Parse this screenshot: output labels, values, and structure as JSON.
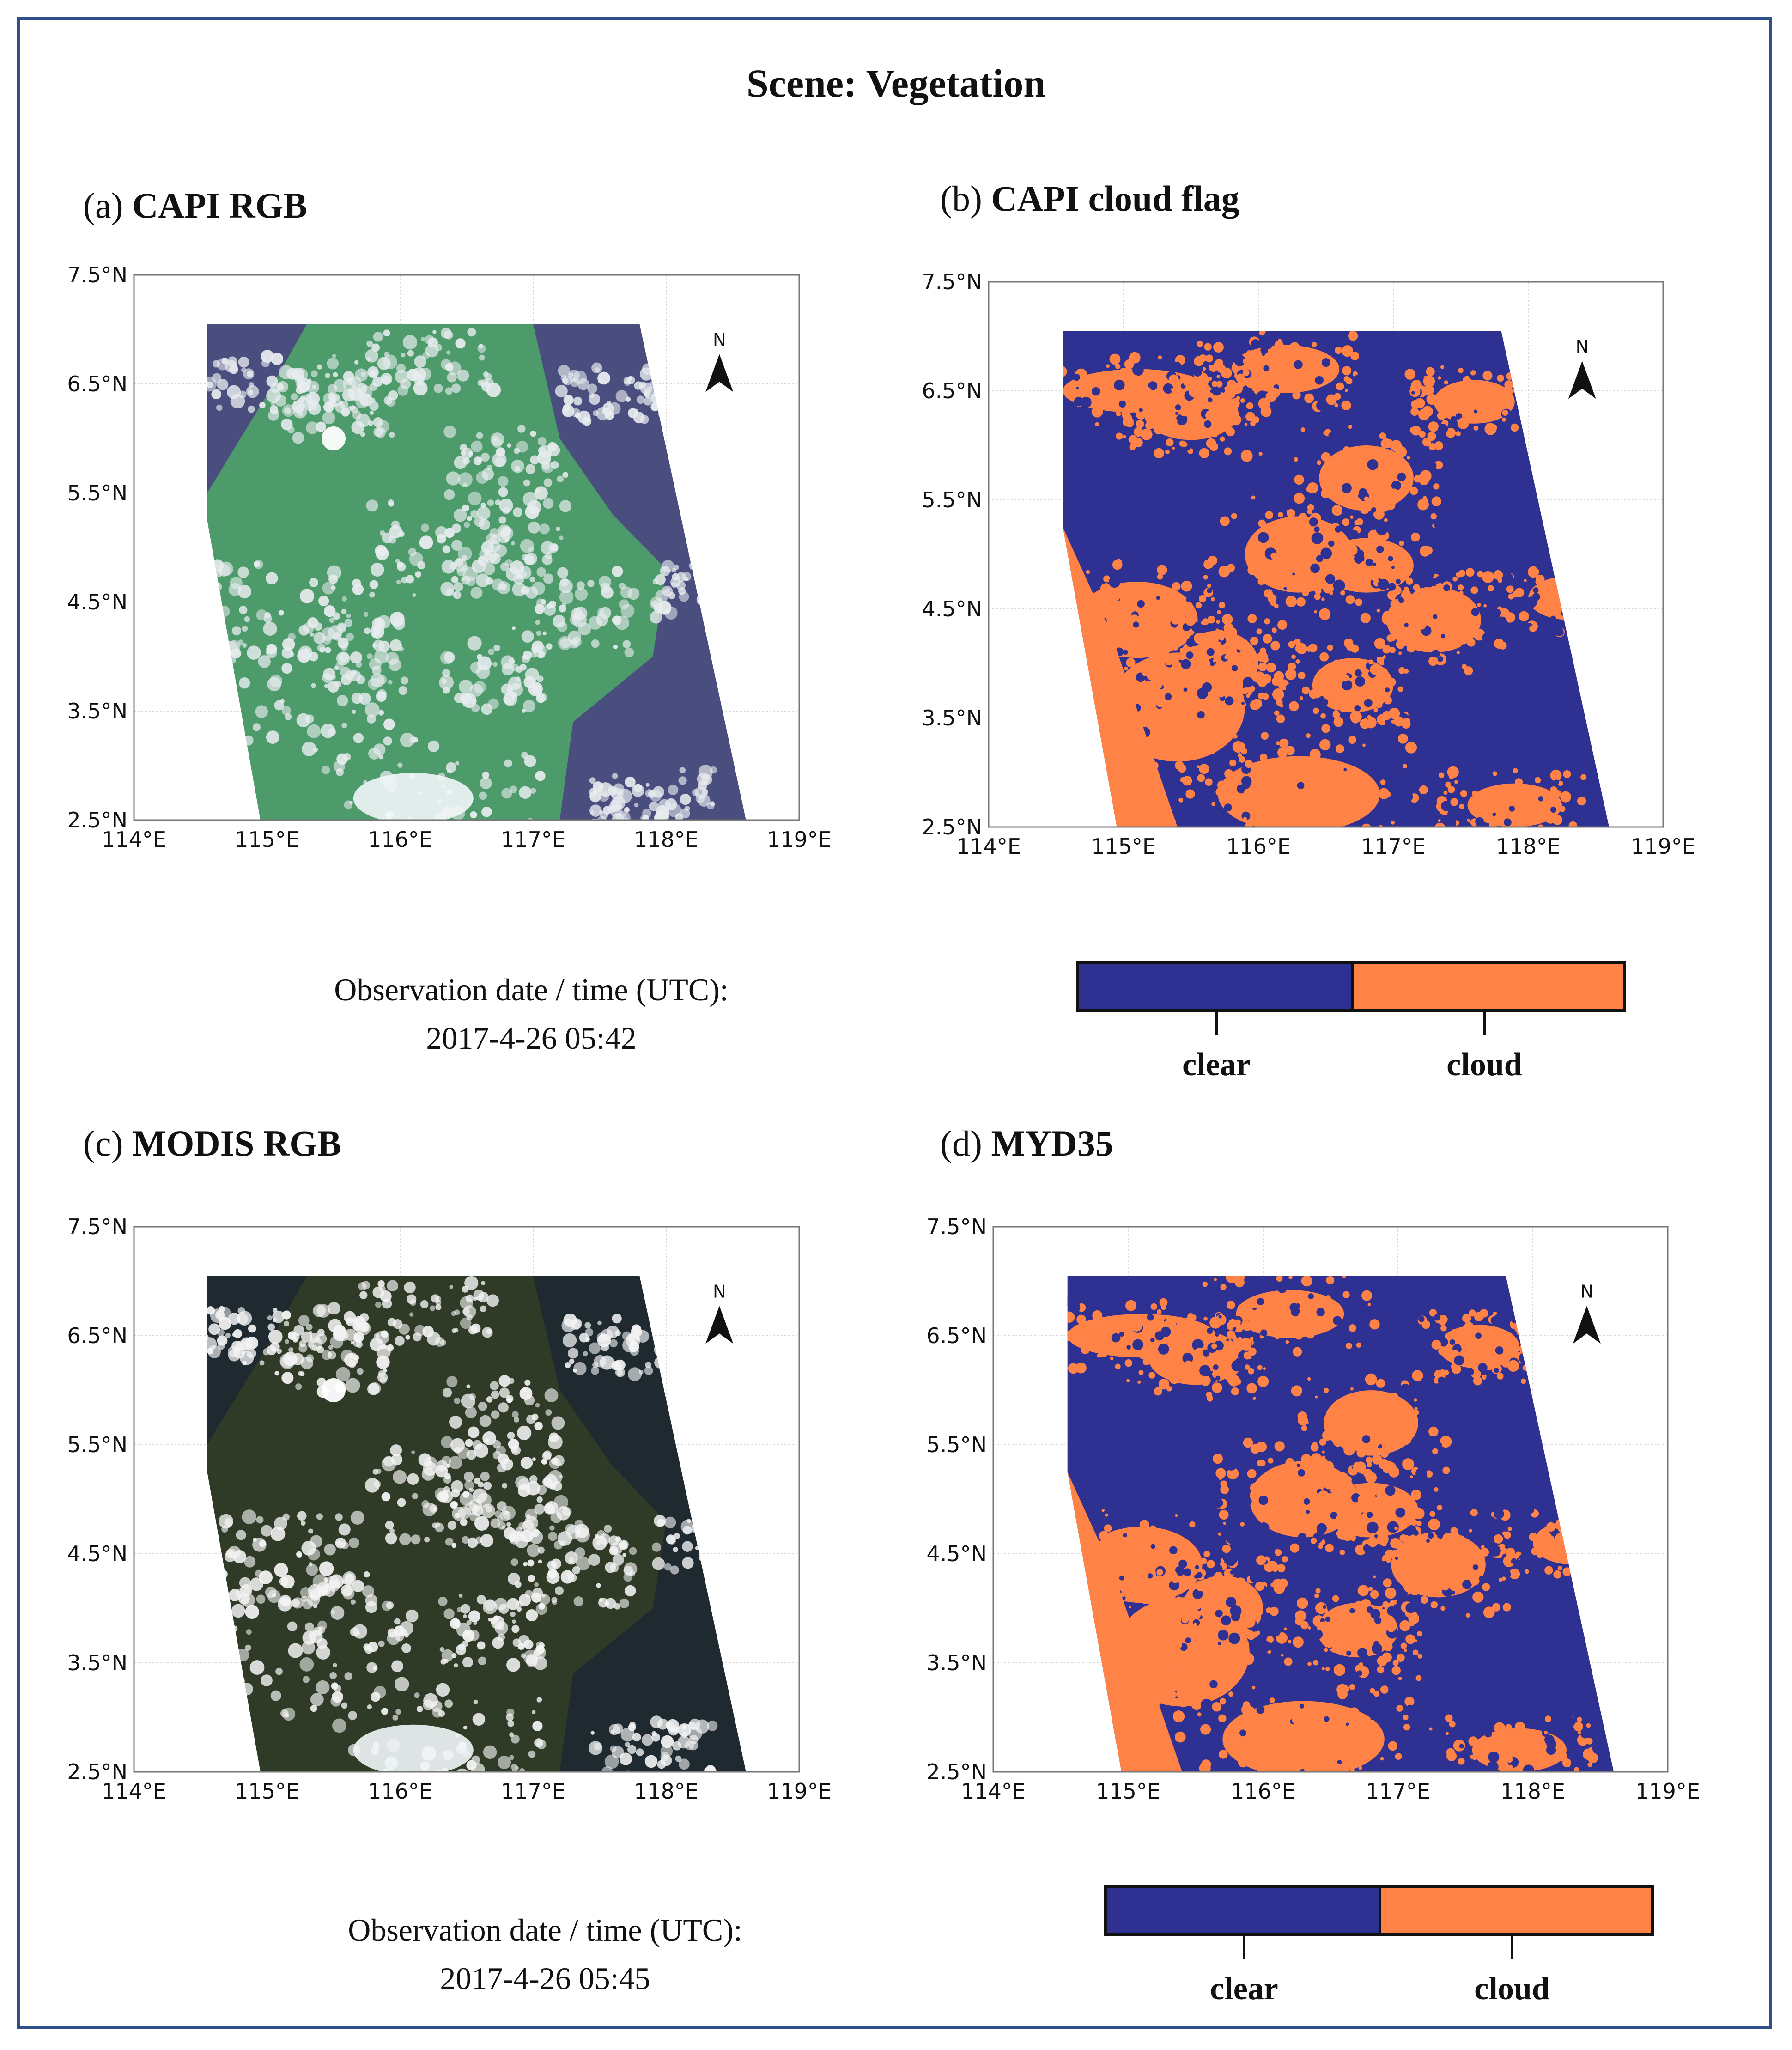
{
  "figure": {
    "title": "Scene: Vegetation"
  },
  "panels": [
    {
      "letter": "(a)",
      "name": "CAPI RGB",
      "type": "rgb",
      "style": "capi"
    },
    {
      "letter": "(b)",
      "name": "CAPI cloud flag",
      "type": "flag"
    },
    {
      "letter": "(c)",
      "name": "MODIS RGB",
      "type": "rgb",
      "style": "modis"
    },
    {
      "letter": "(d)",
      "name": "MYD35",
      "type": "flag"
    }
  ],
  "axes": {
    "lat_ticks": [
      "7.5°N",
      "6.5°N",
      "5.5°N",
      "4.5°N",
      "3.5°N",
      "2.5°N"
    ],
    "lon_ticks": [
      "114°E",
      "115°E",
      "116°E",
      "117°E",
      "118°E",
      "119°E"
    ],
    "lat_range": [
      2.5,
      7.5
    ],
    "lon_range": [
      114,
      119
    ],
    "north_label": "N"
  },
  "observations": {
    "capi": {
      "label": "Observation date / time (UTC):",
      "datetime": "2017-4-26 05:42"
    },
    "modis": {
      "label": "Observation date / time (UTC):",
      "datetime": "2017-4-26 05:45"
    }
  },
  "legend": {
    "clear_label": "clear",
    "cloud_label": "cloud",
    "clear_color": "#2e3192",
    "cloud_color": "#ff8247"
  },
  "colors": {
    "frame": "#2f4f8a",
    "capi_land": "#4d9a6a",
    "capi_sea": "#4a4e7e",
    "modis_land": "#2f3b27",
    "modis_sea": "#1e2a30"
  }
}
